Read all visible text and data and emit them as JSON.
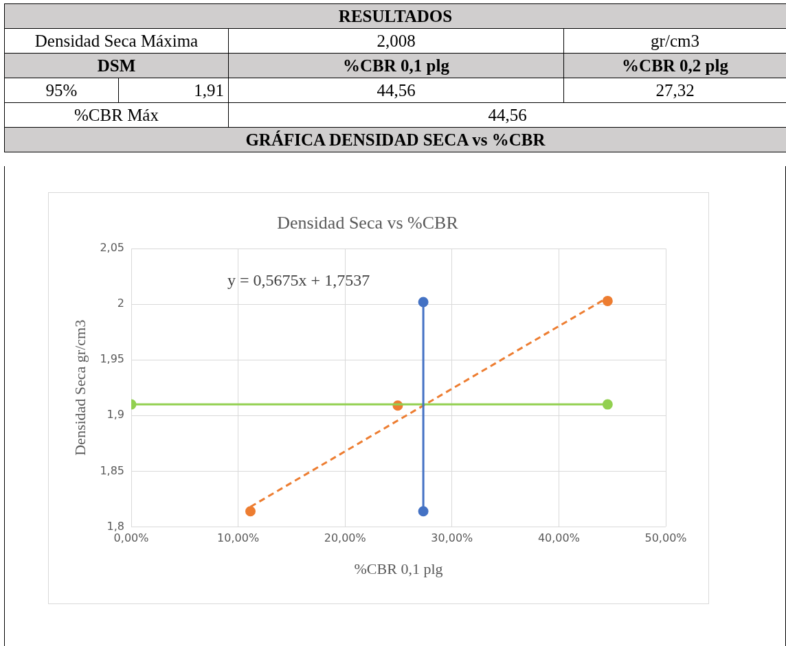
{
  "chart_data": [
    {
      "type": "other",
      "title": "RESULTADOS",
      "annotations": [
        "Densidad Seca Máxima",
        "2,008",
        "gr/cm3",
        "DSM",
        "%CBR 0,1 plg",
        "%CBR 0,2 plg",
        "95%",
        "1,91",
        "44,56",
        "27,32",
        "%CBR Máx",
        "44,56",
        "GRÁFICA  DENSIDAD SECA vs %CBR"
      ]
    },
    {
      "type": "scatter",
      "title": "Densidad Seca vs %CBR",
      "xlabel": "%CBR 0,1 plg",
      "ylabel": "Densidad Seca gr/cm3",
      "xlim": [
        0,
        50
      ],
      "xticks": [
        {
          "value": 0,
          "label": "0,00%"
        },
        {
          "value": 10,
          "label": "10,00%"
        },
        {
          "value": 20,
          "label": "20,00%"
        },
        {
          "value": 30,
          "label": "30,00%"
        },
        {
          "value": 40,
          "label": "40,00%"
        },
        {
          "value": 50,
          "label": "50,00%"
        }
      ],
      "ylim": [
        1.8,
        2.05
      ],
      "yticks": [
        {
          "value": 1.8,
          "label": "1,8"
        },
        {
          "value": 1.85,
          "label": "1,85"
        },
        {
          "value": 1.9,
          "label": "1,9"
        },
        {
          "value": 1.95,
          "label": "1,95"
        },
        {
          "value": 2,
          "label": "2"
        },
        {
          "value": 2.05,
          "label": "2,05"
        }
      ],
      "grid": true,
      "legend": false,
      "marker": "circle",
      "annotations": [
        "y = 0,5675x + 1,7537"
      ],
      "series": [
        {
          "type": "line",
          "color": "#4472c4",
          "x": [
            27.32,
            27.32
          ],
          "values": [
            1.814,
            2.002
          ]
        },
        {
          "type": "line",
          "color": "#92d050",
          "x": [
            0,
            44.56
          ],
          "values": [
            1.91,
            1.91
          ]
        },
        {
          "type": "line",
          "color": "#ed7d31",
          "line_style": "dashed",
          "marker": "none",
          "x": [
            11.15,
            44.56
          ],
          "values": [
            1.818,
            2.006
          ]
        },
        {
          "type": "scatter",
          "color": "#ed7d31",
          "x": [
            11.15,
            24.93,
            44.56
          ],
          "values": [
            1.814,
            1.909,
            2.003
          ]
        }
      ]
    }
  ]
}
